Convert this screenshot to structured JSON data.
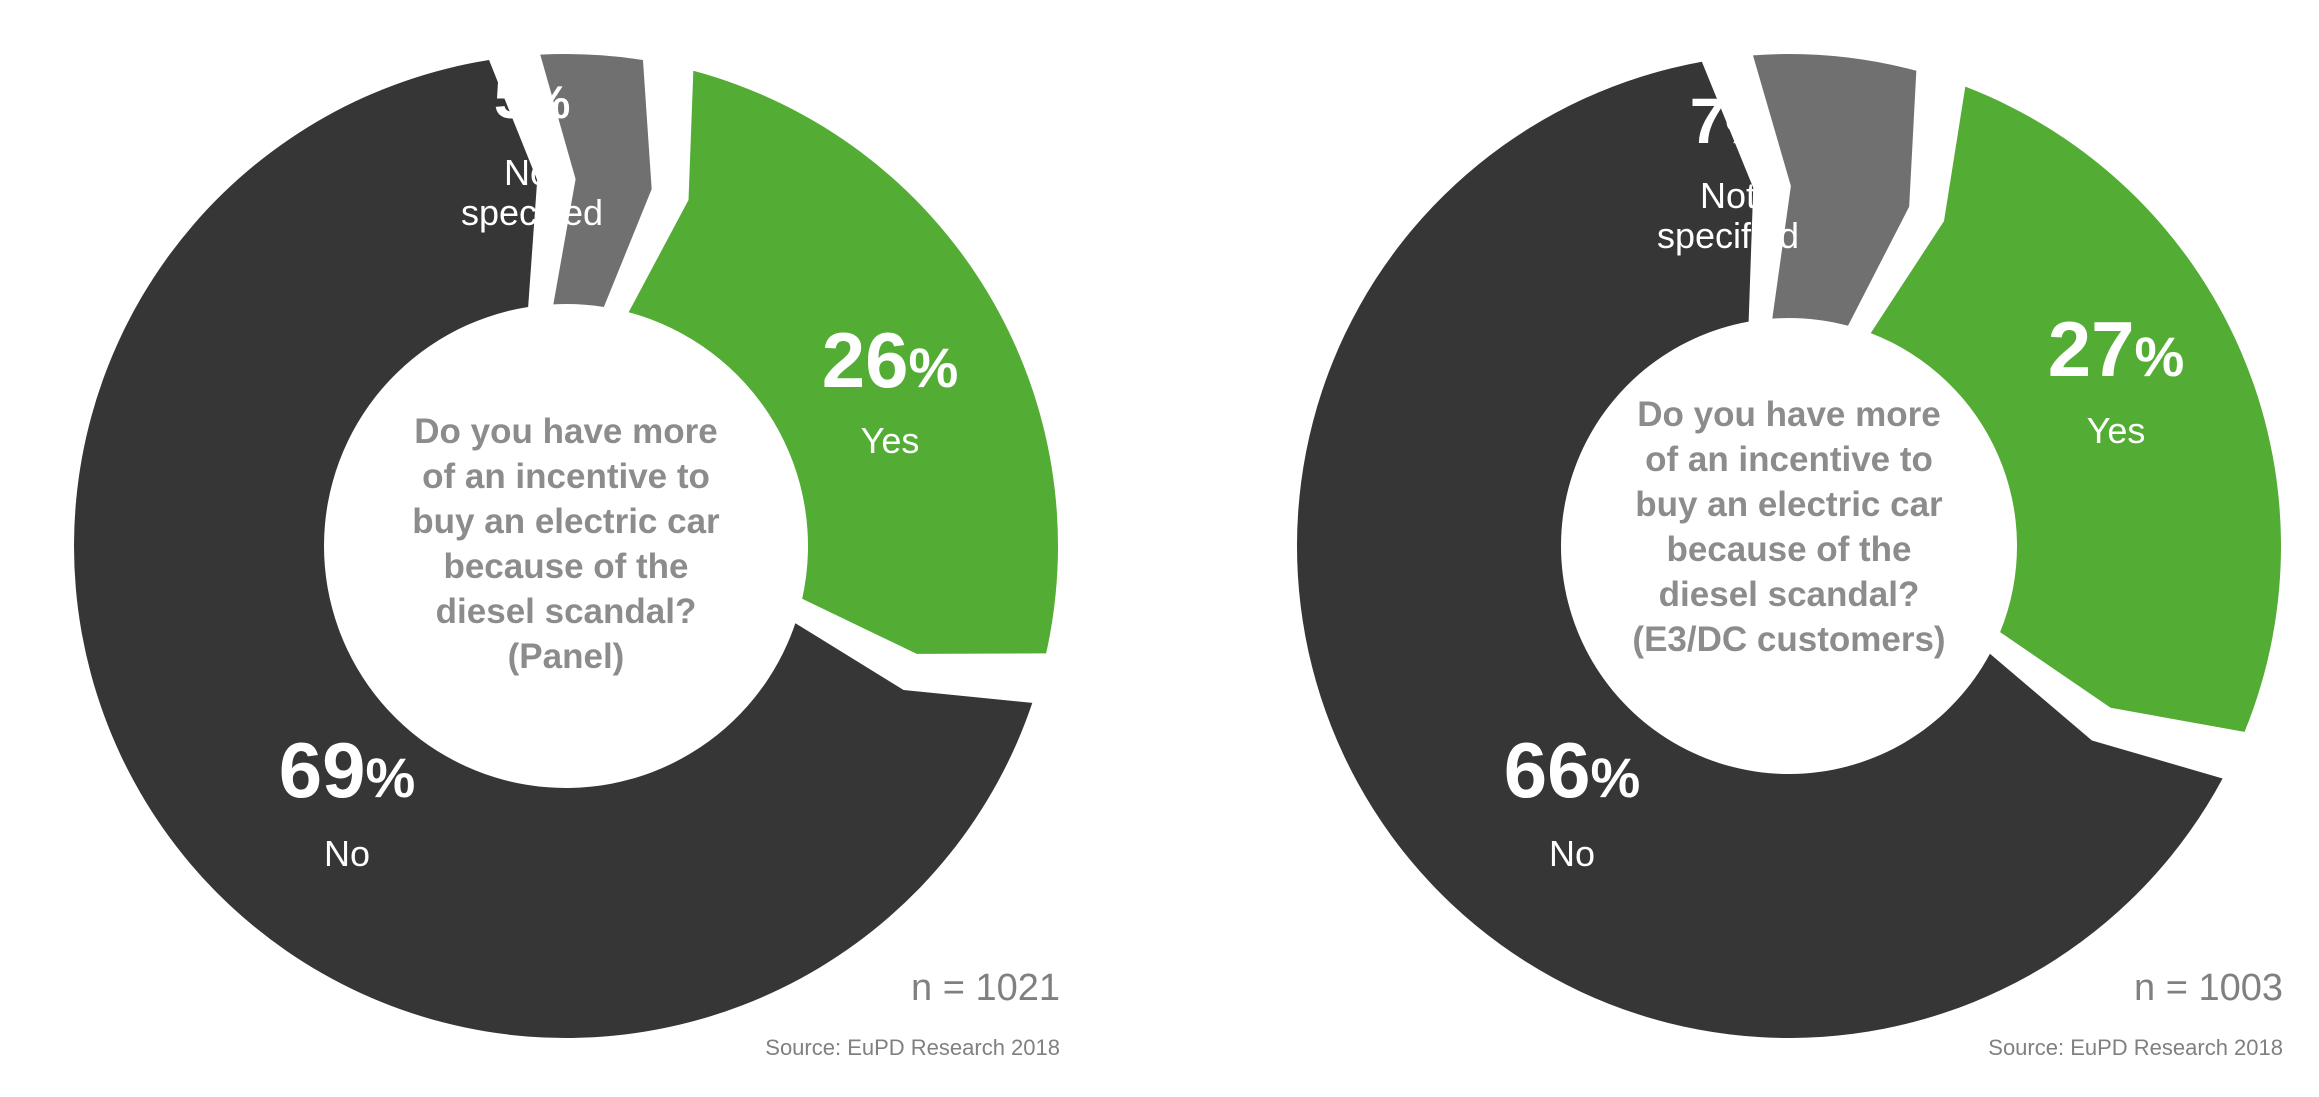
{
  "colors": {
    "yes": "#53ac33",
    "no": "#363636",
    "not_specified": "#717070",
    "question_text": "#8c8c8c",
    "label_text": "#ffffff",
    "footer_text": "#808080",
    "gap": "#ffffff"
  },
  "chart_data": [
    {
      "type": "pie",
      "style": "donut",
      "question": [
        "Do you have more",
        "of an incentive to",
        "buy an electric car",
        "because of the",
        "diesel scandal?",
        "(Panel)"
      ],
      "slices": [
        {
          "key": "yes",
          "label": "Yes",
          "value": 26,
          "value_text": "26",
          "unit": "%"
        },
        {
          "key": "no",
          "label": "No",
          "value": 69,
          "value_text": "69",
          "unit": "%"
        },
        {
          "key": "not_specified",
          "label": "Not specified",
          "label_lines": [
            "Not",
            "specified"
          ],
          "value": 5,
          "value_text": "5",
          "unit": "%"
        }
      ],
      "sample_size": "n = 1021",
      "source": "Source: EuPD Research 2018"
    },
    {
      "type": "pie",
      "style": "donut",
      "question": [
        "Do you have more",
        "of an incentive to",
        "buy an electric car",
        "because of the",
        "diesel scandal?",
        "(E3/DC customers)"
      ],
      "slices": [
        {
          "key": "yes",
          "label": "Yes",
          "value": 27,
          "value_text": "27",
          "unit": "%"
        },
        {
          "key": "no",
          "label": "No",
          "value": 66,
          "value_text": "66",
          "unit": "%"
        },
        {
          "key": "not_specified",
          "label": "Not specified",
          "label_lines": [
            "Not",
            "specified"
          ],
          "value": 7,
          "value_text": "7",
          "unit": "%"
        }
      ],
      "sample_size": "n = 1003",
      "source": "Source: EuPD Research 2018"
    }
  ]
}
